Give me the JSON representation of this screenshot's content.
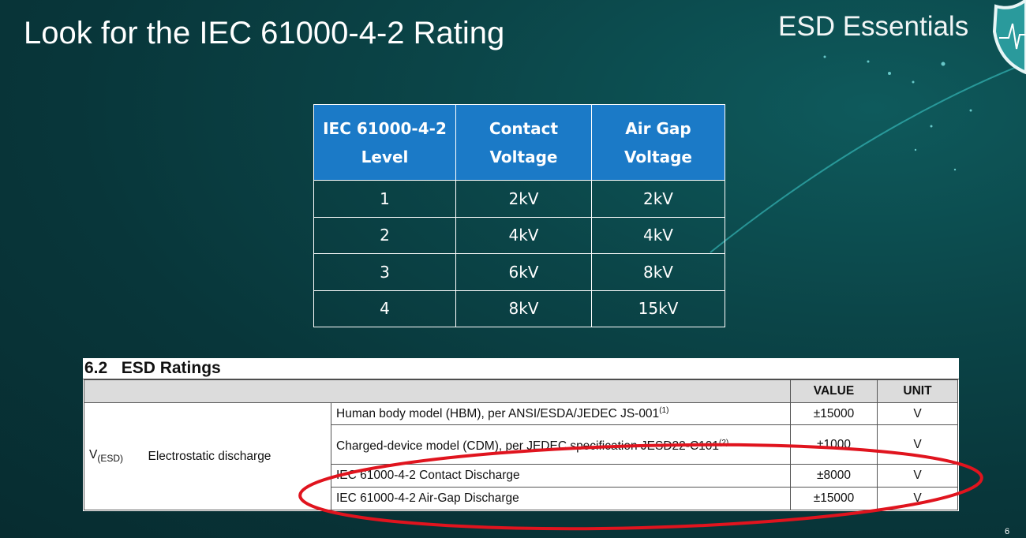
{
  "slide": {
    "title": "Look for the IEC 61000-4-2 Rating",
    "brand": "ESD Essentials",
    "page_number": "6"
  },
  "level_table": {
    "headers": [
      [
        "IEC 61000-4-2",
        "Level"
      ],
      [
        "Contact",
        "Voltage"
      ],
      [
        "Air Gap",
        "Voltage"
      ]
    ],
    "rows": [
      [
        "1",
        "2kV",
        "2kV"
      ],
      [
        "2",
        "4kV",
        "4kV"
      ],
      [
        "3",
        "6kV",
        "8kV"
      ],
      [
        "4",
        "8kV",
        "15kV"
      ]
    ]
  },
  "esd_ratings": {
    "heading": "6.2   ESD Ratings",
    "col_value": "VALUE",
    "col_unit": "UNIT",
    "symbol": "V",
    "symbol_sub": "(ESD)",
    "parameter": "Electrostatic discharge",
    "rows": [
      {
        "desc": "Human body model (HBM), per ANSI/ESDA/JEDEC JS-001",
        "note": "(1)",
        "value": "±15000",
        "unit": "V"
      },
      {
        "desc": "Charged-device model (CDM), per JEDEC specification JESD22-C101",
        "note": "(2)",
        "value": "±1000",
        "unit": "V"
      },
      {
        "desc": "IEC 61000-4-2 Contact Discharge",
        "note": "",
        "value": "±8000",
        "unit": "V"
      },
      {
        "desc": "IEC 61000-4-2 Air-Gap Discharge",
        "note": "",
        "value": "±15000",
        "unit": "V"
      }
    ],
    "highlight_color": "#e0141e"
  }
}
